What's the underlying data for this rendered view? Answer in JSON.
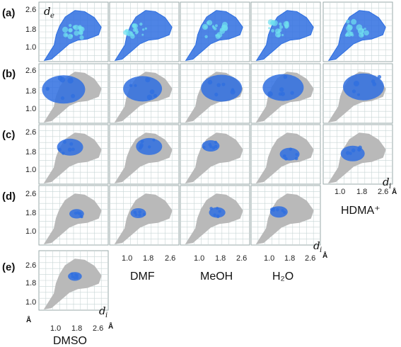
{
  "chart_data": {
    "type": "scatter",
    "title": "",
    "rows": [
      "(a)",
      "(b)",
      "(c)",
      "(d)",
      "(e)"
    ],
    "columns": [
      "DMF",
      "MeOH",
      "H₂O",
      "HDMA⁺",
      "DMSO"
    ],
    "yticks": [
      "2.6",
      "1.8",
      "1.0"
    ],
    "xticks": [
      "1.0",
      "1.8",
      "2.6"
    ],
    "ylabel": "d",
    "ylabel_sub": "e",
    "xlabel": "d",
    "xlabel_sub": "i",
    "unit": "Å",
    "xlim": [
      0.6,
      2.8
    ],
    "ylim": [
      0.6,
      2.8
    ],
    "colors": {
      "full_map": "#2f6fe0",
      "highlight": "#6fe0f0",
      "background_map": "#b9b9b9",
      "grid": "#c8d6d6",
      "frame": "#9aa"
    }
  }
}
